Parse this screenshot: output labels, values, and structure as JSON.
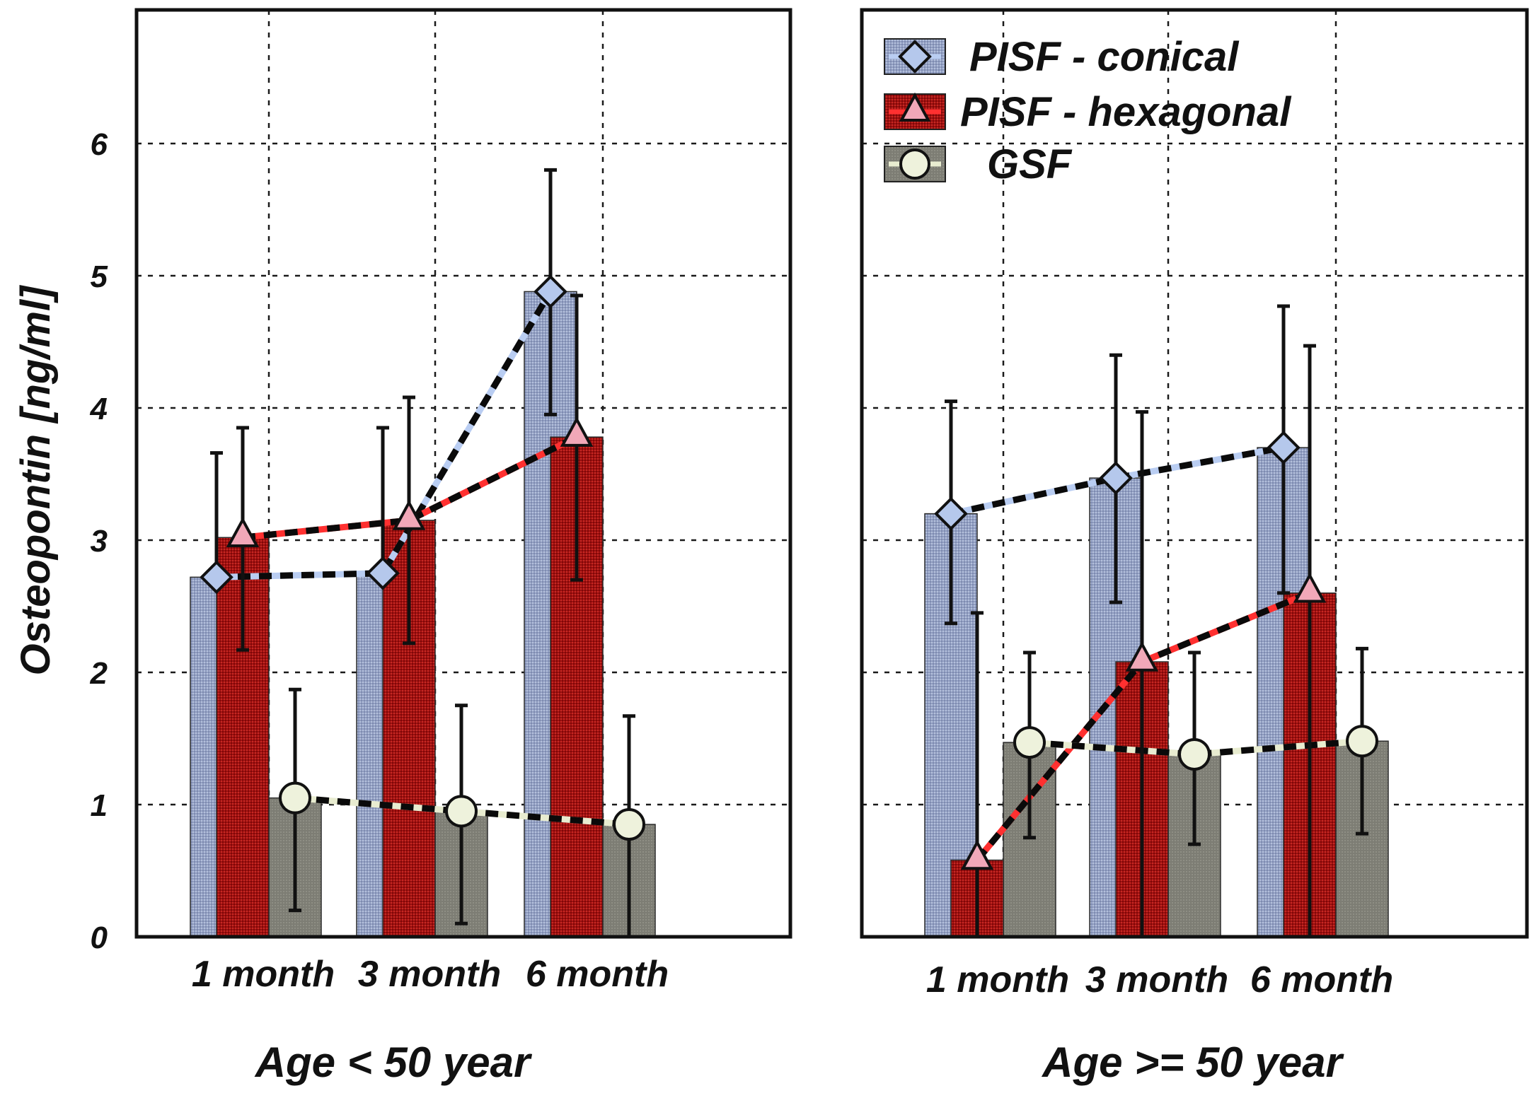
{
  "colors": {
    "conical": "#9aa6c6",
    "hexagonal": "#a31212",
    "gsf": "#7f7f76",
    "conical_marker": "#b5c8ec",
    "hexagonal_marker": "#f1a8b8",
    "gsf_marker": "#eef2dc",
    "conical_line": "#b9cdf2",
    "hexagonal_line": "#ff3030",
    "gsf_line": "#e8ecd0"
  },
  "chart_data": {
    "type": "bar",
    "ylabel": "Osteopontin [ng/ml]",
    "ylim": [
      0,
      7
    ],
    "yticks": [
      "0",
      "1",
      "2",
      "3",
      "4",
      "5",
      "6"
    ],
    "grid": true,
    "legend": {
      "position": "top-right",
      "entries": [
        {
          "name": "PISF - conical",
          "marker": "diamond-icon"
        },
        {
          "name": "PISF - hexagonal",
          "marker": "triangle-icon"
        },
        {
          "name": "GSF",
          "marker": "circle-icon"
        }
      ]
    },
    "panels": [
      {
        "title": "Age < 50 year",
        "categories": [
          "1 month",
          "3 month",
          "6 month"
        ],
        "series": [
          {
            "name": "PISF - conical",
            "values": [
              2.72,
              2.75,
              4.88
            ],
            "err_low": [
              2.72,
              2.75,
              3.95
            ],
            "err_high": [
              3.66,
              3.85,
              5.8
            ]
          },
          {
            "name": "PISF - hexagonal",
            "values": [
              3.02,
              3.15,
              3.78
            ],
            "err_low": [
              2.17,
              2.22,
              2.7
            ],
            "err_high": [
              3.85,
              4.08,
              4.85
            ]
          },
          {
            "name": "GSF",
            "values": [
              1.05,
              0.95,
              0.85
            ],
            "err_low": [
              0.2,
              0.1,
              0.0
            ],
            "err_high": [
              1.87,
              1.75,
              1.67
            ]
          }
        ]
      },
      {
        "title": "Age >= 50 year",
        "categories": [
          "1 month",
          "3 month",
          "6 month"
        ],
        "series": [
          {
            "name": "PISF - conical",
            "values": [
              3.2,
              3.47,
              3.7
            ],
            "err_low": [
              2.37,
              2.53,
              2.6
            ],
            "err_high": [
              4.05,
              4.4,
              4.77
            ]
          },
          {
            "name": "PISF - hexagonal",
            "values": [
              0.58,
              2.08,
              2.6
            ],
            "err_low": [
              0.0,
              0.0,
              0.0
            ],
            "err_high": [
              2.45,
              3.97,
              4.47
            ]
          },
          {
            "name": "GSF",
            "values": [
              1.47,
              1.38,
              1.48
            ],
            "err_low": [
              0.75,
              0.7,
              0.78
            ],
            "err_high": [
              2.15,
              2.15,
              2.18
            ]
          }
        ]
      }
    ]
  }
}
